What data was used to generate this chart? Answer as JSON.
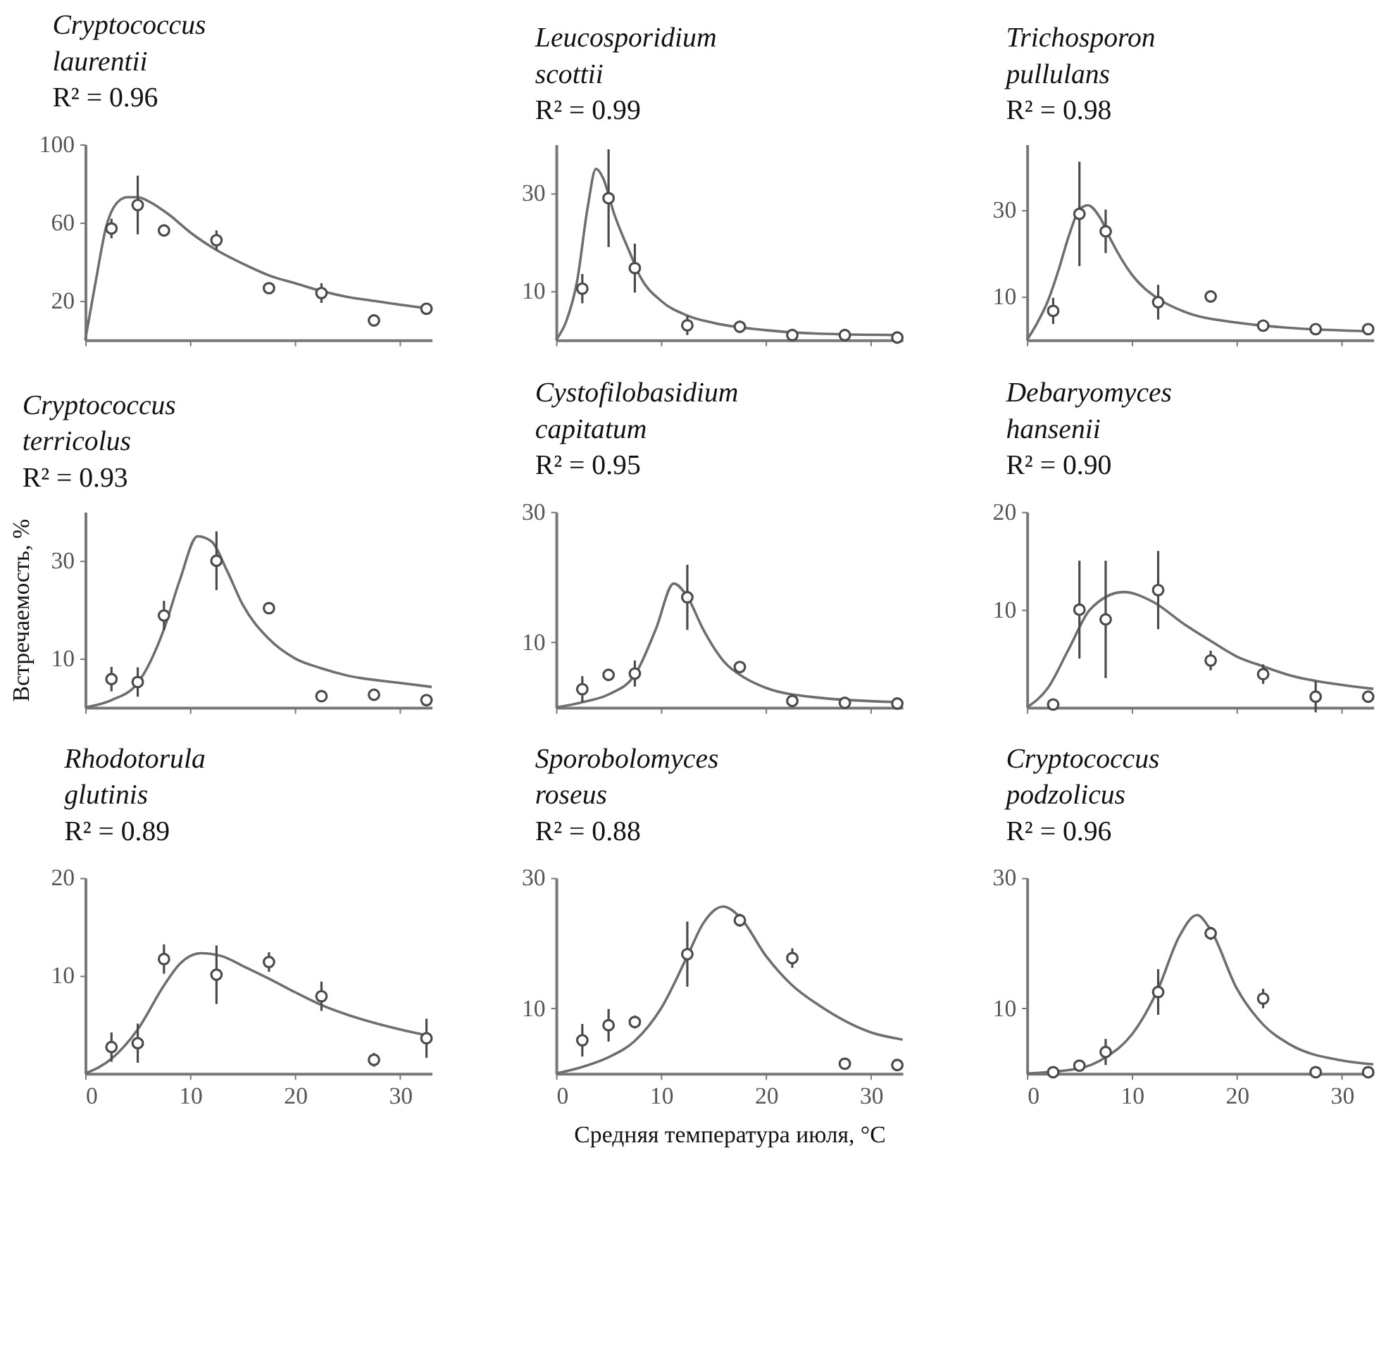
{
  "chart_data": [
    {
      "type": "line",
      "title": "Cryptococcus laurentii",
      "subtitle": "R² = 0.96",
      "xlim": [
        0,
        33
      ],
      "xticks": [
        0,
        10,
        20,
        30
      ],
      "ylim": [
        0,
        100
      ],
      "yticks": [
        20,
        60,
        100
      ],
      "tick_labels": "y",
      "grid": false,
      "series": [
        {
          "color": "#6e6e6e",
          "x": [
            0,
            1,
            2,
            3,
            4,
            5,
            6,
            8,
            10,
            12.5,
            15,
            17.5,
            20,
            22.5,
            25,
            27.5,
            30,
            33
          ],
          "values": [
            0,
            30,
            58,
            70,
            73,
            73,
            71,
            64,
            55,
            46,
            39,
            33,
            29,
            25,
            22,
            20,
            18,
            16
          ]
        },
        {
          "type": "scatter",
          "color": "#4a4a4a",
          "marker": "circle",
          "x": [
            2.5,
            5,
            7.5,
            12.5,
            17.5,
            22.5,
            27.5,
            32.5
          ],
          "values": [
            57,
            69,
            56,
            51,
            26.5,
            24,
            10,
            16
          ],
          "errors": [
            5,
            15,
            null,
            5,
            null,
            5,
            null,
            3
          ]
        }
      ]
    },
    {
      "type": "line",
      "title": "Leucosporidium scottii",
      "subtitle": "R² = 0.99",
      "xlim": [
        0,
        33
      ],
      "xticks": [
        0,
        10,
        20,
        30
      ],
      "ylim": [
        0,
        40
      ],
      "yticks": [
        10,
        30
      ],
      "tick_labels": "y",
      "grid": false,
      "series": [
        {
          "color": "#6e6e6e",
          "x": [
            0,
            1,
            2,
            3,
            3.8,
            4.5,
            5.5,
            7,
            8,
            10,
            12.5,
            15,
            20,
            25,
            33
          ],
          "values": [
            0,
            4,
            12,
            27,
            35,
            33,
            26,
            18,
            13,
            8,
            5,
            3.5,
            2,
            1.3,
            1
          ]
        },
        {
          "type": "scatter",
          "color": "#4a4a4a",
          "marker": "circle",
          "x": [
            2.5,
            5,
            7.5,
            12.5,
            17.5,
            22.5,
            27.5,
            32.5
          ],
          "values": [
            10.5,
            29,
            14.7,
            3,
            2.7,
            1,
            1,
            0.5
          ],
          "errors": [
            3,
            10,
            5,
            2,
            null,
            null,
            null,
            null
          ]
        }
      ]
    },
    {
      "type": "line",
      "title": "Trichosporon pullulans",
      "subtitle": "R² = 0.98",
      "xlim": [
        0,
        33
      ],
      "xticks": [
        0,
        10,
        20,
        30
      ],
      "ylim": [
        0,
        45
      ],
      "yticks": [
        10,
        30
      ],
      "tick_labels": "y",
      "grid": false,
      "series": [
        {
          "color": "#6e6e6e",
          "x": [
            0,
            1,
            2,
            3,
            4,
            5,
            5.8,
            7,
            8,
            10,
            12.5,
            15,
            20,
            25,
            33
          ],
          "values": [
            0,
            4,
            9,
            16,
            24,
            30,
            31,
            28,
            23,
            15,
            9.5,
            6.5,
            4,
            2.8,
            2
          ]
        },
        {
          "type": "scatter",
          "color": "#4a4a4a",
          "marker": "circle",
          "x": [
            2.5,
            5,
            7.5,
            12.5,
            17.5,
            22.5,
            27.5,
            32.5
          ],
          "values": [
            6.7,
            29,
            25,
            8.7,
            10,
            3.3,
            2.5,
            2.5
          ],
          "errors": [
            3,
            12,
            5,
            4,
            null,
            null,
            null,
            null
          ]
        }
      ]
    },
    {
      "type": "line",
      "title": "Cryptococcus terricolus",
      "subtitle": "R² = 0.93",
      "ylabel": "Встречаемость, %",
      "xlim": [
        0,
        33
      ],
      "xticks": [
        0,
        10,
        20,
        30
      ],
      "ylim": [
        0,
        40
      ],
      "yticks": [
        10,
        30
      ],
      "tick_labels": "y",
      "grid": false,
      "series": [
        {
          "color": "#6e6e6e",
          "x": [
            0,
            2.5,
            5,
            7.5,
            9,
            10.7,
            12,
            13.5,
            15,
            17.5,
            20,
            22.5,
            25,
            30,
            33
          ],
          "values": [
            0,
            1.5,
            5,
            16,
            26,
            35,
            34,
            28,
            21,
            14,
            10,
            8,
            6.5,
            5,
            4.2
          ]
        },
        {
          "type": "scatter",
          "color": "#4a4a4a",
          "marker": "circle",
          "x": [
            2.5,
            5,
            7.5,
            12.5,
            17.5,
            22.5,
            27.5,
            32.5
          ],
          "values": [
            5.8,
            5.2,
            18.8,
            30,
            20.3,
            2.3,
            2.6,
            1.5
          ],
          "errors": [
            2.5,
            3,
            3,
            6,
            null,
            1,
            null,
            null
          ]
        }
      ]
    },
    {
      "type": "line",
      "title": "Cystofilobasidium capitatum",
      "subtitle": "R² = 0.95",
      "xlim": [
        0,
        33
      ],
      "xticks": [
        0,
        10,
        20,
        30
      ],
      "ylim": [
        0,
        30
      ],
      "yticks": [
        10,
        30
      ],
      "tick_labels": "y",
      "grid": false,
      "series": [
        {
          "color": "#6e6e6e",
          "x": [
            0,
            2.5,
            5,
            7.5,
            9.5,
            11.2,
            12.5,
            14,
            16,
            18,
            20,
            25,
            33
          ],
          "values": [
            0,
            0.8,
            2,
            5,
            12,
            19,
            17,
            12,
            7,
            4.5,
            3,
            1.5,
            0.8
          ]
        },
        {
          "type": "scatter",
          "color": "#4a4a4a",
          "marker": "circle",
          "x": [
            2.5,
            5,
            7.5,
            12.5,
            17.5,
            22.5,
            27.5,
            32.5
          ],
          "values": [
            2.8,
            5,
            5.2,
            16.9,
            6.2,
            1,
            0.7,
            0.6
          ],
          "errors": [
            2,
            null,
            2,
            5,
            null,
            null,
            null,
            null
          ]
        }
      ]
    },
    {
      "type": "line",
      "title": "Debaryomyces hansenii",
      "subtitle": "R² = 0.90",
      "xlim": [
        0,
        33
      ],
      "xticks": [
        0,
        10,
        20,
        30
      ],
      "ylim": [
        0,
        20
      ],
      "yticks": [
        10,
        20
      ],
      "tick_labels": "y",
      "grid": false,
      "series": [
        {
          "color": "#6e6e6e",
          "x": [
            0,
            2,
            4,
            6,
            9.2,
            12,
            15,
            17.5,
            20,
            22.5,
            25,
            30,
            33
          ],
          "values": [
            0,
            2,
            6,
            10,
            11.8,
            10.8,
            8.5,
            6.8,
            5.2,
            4.2,
            3.3,
            2.3,
            1.9
          ]
        },
        {
          "type": "scatter",
          "color": "#4a4a4a",
          "marker": "circle",
          "x": [
            2.5,
            5,
            7.5,
            12.5,
            17.5,
            22.5,
            27.5,
            32.5
          ],
          "values": [
            0.3,
            10,
            9,
            12,
            4.8,
            3.4,
            1.1,
            1.1
          ],
          "errors": [
            null,
            5,
            6,
            4,
            1,
            1,
            1.6,
            null
          ]
        }
      ]
    },
    {
      "type": "line",
      "title": "Rhodotorula glutinis",
      "subtitle": "R² = 0.89",
      "xlim": [
        0,
        33
      ],
      "xticks": [
        0,
        10,
        20,
        30
      ],
      "ylim": [
        0,
        20
      ],
      "yticks": [
        10,
        20
      ],
      "grid": false,
      "series": [
        {
          "color": "#6e6e6e",
          "x": [
            0,
            2.5,
            5,
            7.5,
            9,
            11,
            13,
            15,
            17.5,
            20,
            22.5,
            25,
            30,
            33
          ],
          "values": [
            0,
            1.5,
            4.5,
            9,
            11.2,
            12.3,
            12,
            11,
            9.7,
            8.3,
            7,
            6,
            4.5,
            3.8
          ]
        },
        {
          "type": "scatter",
          "color": "#4a4a4a",
          "marker": "circle",
          "x": [
            2.5,
            5,
            7.5,
            12.5,
            17.5,
            22.5,
            27.5,
            32.5
          ],
          "values": [
            2.7,
            3.1,
            11.7,
            10.1,
            11.4,
            7.9,
            1.4,
            3.6
          ],
          "errors": [
            1.5,
            2,
            1.5,
            3,
            1,
            1.5,
            0.7,
            2
          ]
        }
      ]
    },
    {
      "type": "line",
      "title": "Sporobolomyces roseus",
      "subtitle": "R² = 0.88",
      "xlabel": "Средняя температура июля, °C",
      "xlim": [
        0,
        33
      ],
      "xticks": [
        0,
        10,
        20,
        30
      ],
      "ylim": [
        0,
        30
      ],
      "yticks": [
        10,
        30
      ],
      "grid": false,
      "series": [
        {
          "color": "#6e6e6e",
          "x": [
            0,
            2.5,
            5,
            7.5,
            10,
            12.5,
            14,
            15.9,
            17.5,
            20,
            22.5,
            25,
            30,
            33
          ],
          "values": [
            0,
            1,
            2.5,
            5,
            10,
            18,
            23,
            25.6,
            24,
            18,
            13.5,
            10.5,
            6.3,
            5.2
          ]
        },
        {
          "type": "scatter",
          "color": "#4a4a4a",
          "marker": "circle",
          "x": [
            2.5,
            5,
            7.5,
            12.5,
            17.5,
            22.5,
            27.5,
            32.5
          ],
          "values": [
            5.1,
            7.4,
            7.9,
            18.3,
            23.5,
            17.7,
            1.5,
            1.3
          ],
          "errors": [
            2.5,
            2.5,
            1,
            5,
            1,
            1.5,
            null,
            null
          ]
        }
      ]
    },
    {
      "type": "line",
      "title": "Cryptococcus podzolicus",
      "subtitle": "R² = 0.96",
      "xlim": [
        0,
        33
      ],
      "xticks": [
        0,
        10,
        20,
        30
      ],
      "ylim": [
        0,
        30
      ],
      "yticks": [
        10,
        30
      ],
      "grid": false,
      "series": [
        {
          "color": "#6e6e6e",
          "x": [
            0,
            5,
            7.5,
            10,
            12.5,
            14.5,
            16.2,
            17.5,
            20,
            22.5,
            25,
            30,
            33
          ],
          "values": [
            0,
            0.8,
            2.5,
            6,
            13,
            21,
            24.3,
            22,
            13,
            7.5,
            4.5,
            2,
            1.4
          ]
        },
        {
          "type": "scatter",
          "color": "#4a4a4a",
          "marker": "circle",
          "x": [
            2.5,
            5,
            7.5,
            12.5,
            17.5,
            22.5,
            27.5,
            32.5
          ],
          "values": [
            0.2,
            1.2,
            3.3,
            12.5,
            21.5,
            11.5,
            0.2,
            0.2
          ],
          "errors": [
            null,
            null,
            2,
            3.5,
            1,
            1.5,
            null,
            null
          ]
        }
      ]
    }
  ]
}
